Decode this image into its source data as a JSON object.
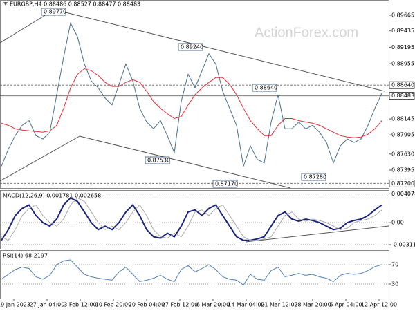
{
  "chart_data": [
    {
      "type": "line",
      "title": "EURGBP,H4 0.88486 0.88527 0.88477 0.88483",
      "watermark": "ActionForex.com",
      "ylim": [
        0.87132,
        0.89888
      ],
      "yticks": [
        0.89665,
        0.89435,
        0.89195,
        0.88955,
        0.88145,
        {
          "value": 0.8791,
          "label": "0.87905"
        },
        {
          "value": 0.8763,
          "label": "0.87630"
        },
        0.87395
      ],
      "levels": [
        {
          "value": 0.8864,
          "label": "0.88640"
        },
        {
          "value": 0.88483,
          "label": "0.88483"
        },
        {
          "value": 0.872,
          "label": "0.87200"
        }
      ],
      "annotations": [
        {
          "value": 0.8977,
          "label": "0.89770"
        },
        {
          "value": 0.8924,
          "label": "0.89240"
        },
        {
          "value": 0.8864,
          "label": "0.88640"
        },
        {
          "value": 0.8753,
          "label": "0.87530"
        },
        {
          "value": 0.8717,
          "label": "0.87170"
        },
        {
          "value": 0.8728,
          "label": "0.87280"
        }
      ],
      "x_axis_labels": [
        "19 Jan 2023",
        "27 Jan 04:00",
        "3 Feb 12:00",
        "10 Feb 20:00",
        "20 Feb 04:00",
        "27 Feb 12:00",
        "6 Mar 20:00",
        "14 Mar 04:00",
        "21 Mar 12:00",
        "28 Mar 20:00",
        "5 Apr 04:00",
        "12 Apr 12:00"
      ],
      "series": [
        {
          "name": "EURGBP",
          "color": "#4a6f8a",
          "values": [
            0.8745,
            0.877,
            0.879,
            0.8805,
            0.8812,
            0.879,
            0.8785,
            0.8795,
            0.885,
            0.8905,
            0.8955,
            0.8935,
            0.8895,
            0.887,
            0.886,
            0.8845,
            0.8835,
            0.8865,
            0.8895,
            0.887,
            0.883,
            0.881,
            0.88,
            0.8812,
            0.879,
            0.8765,
            0.884,
            0.888,
            0.886,
            0.8885,
            0.891,
            0.8895,
            0.8855,
            0.883,
            0.8805,
            0.8745,
            0.8775,
            0.8755,
            0.875,
            0.881,
            0.885,
            0.88,
            0.88,
            0.881,
            0.88,
            0.8805,
            0.8795,
            0.878,
            0.875,
            0.8775,
            0.8785,
            0.878,
            0.8785,
            0.8805,
            0.883,
            0.8852
          ]
        },
        {
          "name": "MA",
          "color": "#e0303a",
          "values": [
            0.8808,
            0.8805,
            0.88,
            0.8798,
            0.8797,
            0.8796,
            0.8795,
            0.8797,
            0.8805,
            0.883,
            0.886,
            0.888,
            0.8888,
            0.8885,
            0.8878,
            0.8868,
            0.8862,
            0.8862,
            0.8868,
            0.8872,
            0.8868,
            0.8855,
            0.884,
            0.883,
            0.8822,
            0.8815,
            0.8818,
            0.8835,
            0.885,
            0.886,
            0.8868,
            0.8875,
            0.8875,
            0.8865,
            0.885,
            0.883,
            0.8812,
            0.88,
            0.879,
            0.879,
            0.8805,
            0.8815,
            0.8815,
            0.8812,
            0.881,
            0.8808,
            0.8805,
            0.88,
            0.8795,
            0.879,
            0.8788,
            0.8787,
            0.8788,
            0.8792,
            0.88,
            0.8812
          ]
        }
      ]
    },
    {
      "type": "line",
      "title": "MACD(12,26,9) 0.001781 0.002658",
      "ylim": [
        -0.0037,
        0.0046
      ],
      "yticks": [
        0.004078,
        {
          "value": 0,
          "label": "0.00"
        },
        -0.003119
      ],
      "series": [
        {
          "name": "MACD",
          "color": "#1a237e",
          "values": [
            -0.0025,
            -0.001,
            0.001,
            0.002,
            0.0025,
            0.001,
            0,
            -0.0005,
            0.0005,
            0.0025,
            0.0035,
            0.003,
            0.0015,
            0,
            -0.001,
            -0.0005,
            -0.001,
            0,
            0.0015,
            0.0025,
            0.001,
            -0.001,
            -0.002,
            -0.0022,
            -0.0015,
            -0.002,
            -0.0005,
            0.0015,
            0.0018,
            0.001,
            0.002,
            0.0025,
            0.001,
            -0.0005,
            -0.002,
            -0.0025,
            -0.0025,
            -0.0023,
            -0.002,
            -0.0005,
            0.001,
            0.0015,
            0.0005,
            0.0002,
            0.0005,
            0.0003,
            0,
            -0.0005,
            -0.001,
            -0.0008,
            0,
            0.0003,
            0.0005,
            0.001,
            0.0018,
            0.0025
          ]
        },
        {
          "name": "Signal",
          "color": "#a8a8a8",
          "values": [
            -0.002,
            -0.0025,
            -0.001,
            0.001,
            0.002,
            0.0025,
            0.001,
            0,
            -0.0005,
            0.0005,
            0.0025,
            0.0035,
            0.003,
            0.0015,
            0,
            -0.001,
            -0.0005,
            -0.001,
            0,
            0.0015,
            0.0025,
            0.001,
            -0.001,
            -0.002,
            -0.0022,
            -0.0015,
            -0.002,
            -0.0005,
            0.0015,
            0.0018,
            0.001,
            0.002,
            0.0025,
            0.001,
            -0.0005,
            -0.002,
            -0.0025,
            -0.0025,
            -0.0023,
            -0.002,
            -0.0005,
            0.001,
            0.0015,
            0.0005,
            0.0002,
            0.0005,
            0.0003,
            0,
            -0.0005,
            -0.001,
            -0.0008,
            0,
            0.0003,
            0.0005,
            0.001,
            0.0018
          ]
        }
      ]
    },
    {
      "type": "line",
      "title": "RSI(14) 68.2197",
      "ylim": [
        0,
        100
      ],
      "yticks": [
        70,
        30
      ],
      "series": [
        {
          "name": "RSI",
          "color": "#4f7fb5",
          "values": [
            40,
            50,
            60,
            65,
            62,
            45,
            40,
            48,
            70,
            78,
            80,
            65,
            50,
            45,
            42,
            40,
            38,
            55,
            65,
            50,
            35,
            38,
            42,
            48,
            40,
            35,
            60,
            68,
            55,
            62,
            70,
            60,
            45,
            40,
            38,
            28,
            50,
            40,
            38,
            58,
            65,
            45,
            48,
            52,
            48,
            50,
            45,
            42,
            35,
            48,
            52,
            50,
            52,
            58,
            66,
            70
          ]
        }
      ]
    }
  ]
}
